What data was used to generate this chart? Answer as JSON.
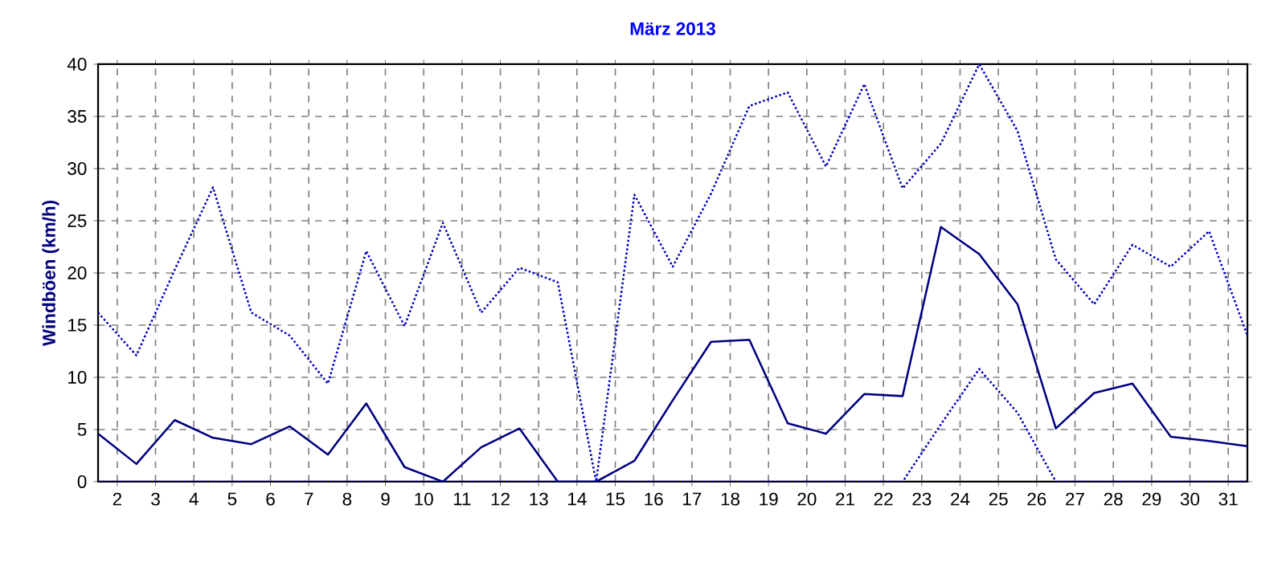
{
  "chart_data": {
    "type": "line",
    "title": "März 2013",
    "ylabel": "Windböen (km/h)",
    "x": [
      1.5,
      2.5,
      3.5,
      4.5,
      5.5,
      6.5,
      7.5,
      8.5,
      9.5,
      10.5,
      11.5,
      12.5,
      13.5,
      14.5,
      15.5,
      16.5,
      17.5,
      18.5,
      19.5,
      20.5,
      21.5,
      22.5,
      23.5,
      24.5,
      25.5,
      26.5,
      27.5,
      28.5,
      29.5,
      30.5,
      31.5
    ],
    "series": [
      {
        "color": "#0000c0",
        "line_style": "dotted",
        "values": [
          16.2,
          12.1,
          20.3,
          28.2,
          16.2,
          14.0,
          9.4,
          22.1,
          14.9,
          24.8,
          16.2,
          20.5,
          19.1,
          0,
          27.5,
          20.6,
          27.6,
          36.0,
          37.3,
          30.2,
          38.1,
          28.1,
          32.4,
          40,
          33.6,
          21.3,
          17.0,
          22.7,
          20.6,
          24.0,
          14.0
        ]
      },
      {
        "color": "#000080",
        "line_style": "solid",
        "values": [
          4.6,
          1.7,
          5.9,
          4.2,
          3.6,
          5.3,
          2.6,
          7.5,
          1.4,
          0,
          3.3,
          5.1,
          0,
          0,
          2.0,
          7.8,
          13.4,
          13.6,
          5.6,
          4.6,
          8.4,
          8.2,
          24.4,
          21.8,
          17.0,
          5.1,
          8.5,
          9.4,
          4.3,
          3.9,
          3.4
        ]
      },
      {
        "color": "#0000c0",
        "line_style": "dotted",
        "values": [
          0,
          0,
          0,
          0,
          0,
          0,
          0,
          0,
          0,
          0,
          0,
          0,
          0,
          0,
          0,
          0,
          0,
          0,
          0,
          0,
          0,
          0,
          5.5,
          10.8,
          6.6,
          0,
          0,
          0,
          0,
          0,
          0
        ]
      }
    ],
    "xlim": [
      1.5,
      31.5
    ],
    "xticks": [
      2,
      3,
      4,
      5,
      6,
      7,
      8,
      9,
      10,
      11,
      12,
      13,
      14,
      15,
      16,
      17,
      18,
      19,
      20,
      21,
      22,
      23,
      24,
      25,
      26,
      27,
      28,
      29,
      30,
      31
    ],
    "ylim": [
      0,
      40
    ],
    "yticks": [
      0,
      5,
      10,
      15,
      20,
      25,
      30,
      35,
      40
    ],
    "grid": true
  }
}
